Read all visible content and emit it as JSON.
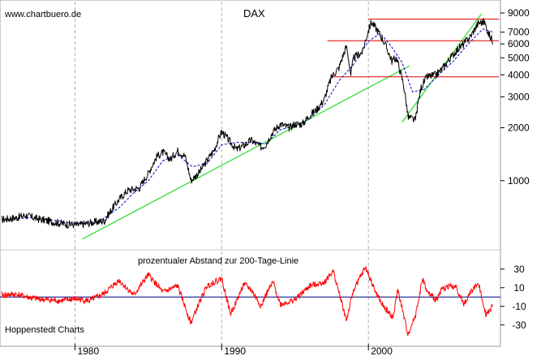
{
  "chart_data": [
    {
      "type": "line",
      "title": "DAX",
      "source_label": "www.chartbuero.de",
      "yscale": "log",
      "ylim": [
        440,
        9800
      ],
      "xlim": [
        1975.0,
        2009.0
      ],
      "y_ticks": [
        1000,
        2000,
        3000,
        4000,
        5000,
        6000,
        7000,
        9000
      ],
      "y_tick_labels": [
        "1000",
        "2000",
        "3000",
        "4000",
        "5000",
        "6000",
        "7000",
        "9000"
      ],
      "x_ticks": [
        1980,
        1990,
        2000
      ],
      "x_tick_labels": [
        "1980",
        "1990",
        "2000"
      ],
      "grid": "vertical dashed at decades",
      "colors": {
        "price": "#000000",
        "ma200": "#0000cc",
        "trend": "#33dd33",
        "resistance": "#dd0000"
      },
      "series": [
        {
          "values": [
            [
              1975.0,
              600
            ],
            [
              1976.0,
              615
            ],
            [
              1976.6,
              635
            ],
            [
              1977.5,
              605
            ],
            [
              1978.6,
              580
            ],
            [
              1979.4,
              565
            ],
            [
              1980.3,
              560
            ],
            [
              1981.0,
              575
            ],
            [
              1982.0,
              590
            ],
            [
              1983.0,
              780
            ],
            [
              1983.6,
              880
            ],
            [
              1984.4,
              910
            ],
            [
              1985.0,
              1100
            ],
            [
              1985.6,
              1380
            ],
            [
              1986.0,
              1450
            ],
            [
              1986.5,
              1320
            ],
            [
              1987.0,
              1480
            ],
            [
              1987.5,
              1380
            ],
            [
              1987.9,
              1000
            ],
            [
              1988.5,
              1120
            ],
            [
              1989.0,
              1300
            ],
            [
              1989.5,
              1500
            ],
            [
              1990.0,
              1900
            ],
            [
              1990.6,
              1650
            ],
            [
              1991.0,
              1500
            ],
            [
              1991.6,
              1600
            ],
            [
              1992.0,
              1700
            ],
            [
              1992.7,
              1550
            ],
            [
              1993.0,
              1600
            ],
            [
              1993.5,
              1900
            ],
            [
              1994.0,
              2100
            ],
            [
              1994.6,
              2000
            ],
            [
              1995.0,
              2100
            ],
            [
              1995.5,
              2100
            ],
            [
              1996.0,
              2350
            ],
            [
              1996.5,
              2550
            ],
            [
              1997.0,
              2900
            ],
            [
              1997.5,
              3900
            ],
            [
              1998.0,
              4400
            ],
            [
              1998.5,
              5800
            ],
            [
              1998.8,
              4000
            ],
            [
              1999.0,
              5000
            ],
            [
              1999.6,
              5400
            ],
            [
              2000.2,
              8000
            ],
            [
              2000.6,
              7200
            ],
            [
              2001.0,
              6300
            ],
            [
              2001.6,
              4800
            ],
            [
              2001.9,
              5000
            ],
            [
              2002.4,
              3500
            ],
            [
              2002.7,
              2300
            ],
            [
              2003.2,
              2200
            ],
            [
              2003.6,
              3400
            ],
            [
              2004.0,
              3900
            ],
            [
              2004.6,
              4000
            ],
            [
              2005.0,
              4300
            ],
            [
              2005.6,
              5000
            ],
            [
              2006.0,
              5500
            ],
            [
              2006.5,
              6000
            ],
            [
              2007.0,
              6700
            ],
            [
              2007.5,
              7900
            ],
            [
              2007.9,
              8000
            ],
            [
              2008.2,
              6800
            ],
            [
              2008.5,
              6200
            ]
          ]
        },
        {
          "values": [
            [
              1975.0,
              600
            ],
            [
              1977.0,
              615
            ],
            [
              1978.5,
              595
            ],
            [
              1980.0,
              570
            ],
            [
              1981.5,
              575
            ],
            [
              1983.0,
              700
            ],
            [
              1984.0,
              850
            ],
            [
              1985.0,
              1000
            ],
            [
              1986.0,
              1300
            ],
            [
              1987.0,
              1400
            ],
            [
              1988.0,
              1200
            ],
            [
              1989.0,
              1250
            ],
            [
              1990.0,
              1600
            ],
            [
              1991.0,
              1650
            ],
            [
              1992.0,
              1650
            ],
            [
              1993.0,
              1620
            ],
            [
              1994.0,
              1950
            ],
            [
              1995.0,
              2050
            ],
            [
              1996.0,
              2250
            ],
            [
              1997.0,
              2700
            ],
            [
              1998.0,
              3700
            ],
            [
              1999.0,
              4600
            ],
            [
              2000.0,
              6200
            ],
            [
              2000.8,
              6900
            ],
            [
              2001.5,
              5900
            ],
            [
              2002.3,
              4700
            ],
            [
              2003.0,
              3200
            ],
            [
              2003.8,
              3300
            ],
            [
              2004.8,
              4000
            ],
            [
              2005.8,
              4800
            ],
            [
              2006.8,
              6000
            ],
            [
              2007.8,
              7300
            ],
            [
              2008.5,
              7000
            ]
          ]
        },
        {
          "values": [
            [
              1980.5,
              465
            ],
            [
              2002.8,
              4500
            ]
          ]
        },
        {
          "values": [
            [
              2002.3,
              2150
            ],
            [
              2007.7,
              8900
            ]
          ]
        },
        {
          "values": [
            [
              2000.0,
              8300
            ],
            [
              2008.9,
              8300
            ]
          ]
        },
        {
          "values": [
            [
              1997.2,
              6250
            ],
            [
              2008.9,
              6250
            ]
          ]
        },
        {
          "values": [
            [
              1997.5,
              3900
            ],
            [
              2008.9,
              3900
            ]
          ]
        }
      ]
    },
    {
      "type": "line",
      "title": "prozentualer Abstand zur 200-Tage-Linie",
      "ylim": [
        -45,
        42
      ],
      "xlim": [
        1975.0,
        2009.0
      ],
      "y_ticks": [
        -30,
        -10,
        10,
        30
      ],
      "y_tick_labels": [
        "-30",
        "-10",
        "10",
        "30"
      ],
      "zero_line": 0,
      "footer_label": "Hoppenstedt Charts",
      "colors": {
        "oscillator": "#ff0000",
        "zero": "#000080"
      },
      "series": [
        {
          "values": [
            [
              1975.0,
              2
            ],
            [
              1976.0,
              3
            ],
            [
              1977.0,
              -1
            ],
            [
              1978.0,
              -3
            ],
            [
              1979.0,
              -4
            ],
            [
              1980.0,
              -2
            ],
            [
              1981.0,
              -4
            ],
            [
              1982.0,
              4
            ],
            [
              1983.0,
              18
            ],
            [
              1984.0,
              2
            ],
            [
              1985.0,
              24
            ],
            [
              1986.0,
              5
            ],
            [
              1987.0,
              12
            ],
            [
              1987.9,
              -28
            ],
            [
              1988.5,
              -5
            ],
            [
              1989.0,
              12
            ],
            [
              1990.0,
              20
            ],
            [
              1990.6,
              -18
            ],
            [
              1991.0,
              -5
            ],
            [
              1991.5,
              14
            ],
            [
              1992.0,
              8
            ],
            [
              1992.7,
              -10
            ],
            [
              1993.0,
              2
            ],
            [
              1993.5,
              16
            ],
            [
              1994.0,
              -8
            ],
            [
              1995.0,
              -3
            ],
            [
              1996.0,
              12
            ],
            [
              1997.0,
              16
            ],
            [
              1997.6,
              28
            ],
            [
              1998.5,
              -25
            ],
            [
              1999.0,
              8
            ],
            [
              1999.8,
              32
            ],
            [
              2000.5,
              5
            ],
            [
              2001.0,
              -10
            ],
            [
              2001.7,
              -22
            ],
            [
              2002.0,
              8
            ],
            [
              2002.7,
              -40
            ],
            [
              2003.2,
              -20
            ],
            [
              2003.7,
              20
            ],
            [
              2004.0,
              5
            ],
            [
              2004.6,
              -3
            ],
            [
              2005.0,
              8
            ],
            [
              2005.5,
              12
            ],
            [
              2006.0,
              10
            ],
            [
              2006.5,
              -8
            ],
            [
              2007.0,
              6
            ],
            [
              2007.5,
              15
            ],
            [
              2008.0,
              -18
            ],
            [
              2008.5,
              -10
            ]
          ]
        }
      ]
    }
  ]
}
